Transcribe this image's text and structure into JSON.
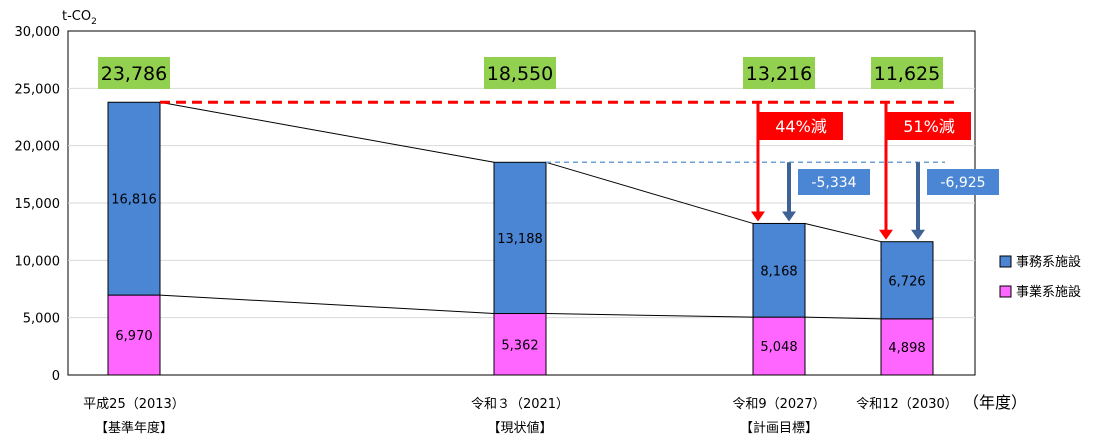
{
  "chart_data": {
    "type": "bar",
    "stacked": true,
    "unit_label": "t-CO",
    "unit_label_sub": "2",
    "categories": [
      "平成25（2013）",
      "令和３（2021）",
      "令和9（2027）",
      "令和12（2030）"
    ],
    "category_notes": [
      "【基準年度】",
      "【現状値】",
      "【計画目標】",
      ""
    ],
    "x_axis_suffix": "（年度）",
    "ylim": [
      0,
      30000
    ],
    "yticks": [
      "0",
      "5,000",
      "10,000",
      "15,000",
      "20,000",
      "25,000",
      "30,000"
    ],
    "ytick_values": [
      0,
      5000,
      10000,
      15000,
      20000,
      25000,
      30000
    ],
    "series": [
      {
        "name": "事業系施設",
        "values": [
          6970,
          5362,
          5048,
          4898
        ],
        "labels": [
          "6,970",
          "5,362",
          "5,048",
          "4,898"
        ],
        "color": "#ff66ff"
      },
      {
        "name": "事務系施設",
        "values": [
          16816,
          13188,
          8168,
          6726
        ],
        "labels": [
          "16,816",
          "13,188",
          "8,168",
          "6,726"
        ],
        "color": "#4a86d4"
      }
    ],
    "totals": [
      23786,
      18550,
      13216,
      11625
    ],
    "total_labels": [
      "23,786",
      "18,550",
      "13,216",
      "11,625"
    ],
    "total_label_color": "#92d050",
    "reduction_badges": [
      {
        "category_index": 2,
        "text": "44%減",
        "color": "#ff0000"
      },
      {
        "category_index": 3,
        "text": "51%減",
        "color": "#ff0000"
      }
    ],
    "reduction_from_current": [
      {
        "category_index": 2,
        "text": "-5,334",
        "color": "#4a86d4"
      },
      {
        "category_index": 3,
        "text": "-6,925",
        "color": "#4a86d4"
      }
    ],
    "baseline_reference": 23786,
    "current_reference": 18550,
    "legend": [
      "事務系施設",
      "事業系施設"
    ],
    "legend_position": "right",
    "grid": true
  }
}
